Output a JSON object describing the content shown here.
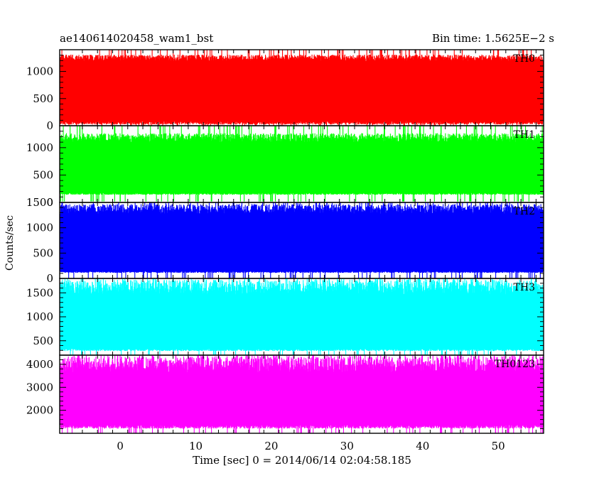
{
  "header": {
    "left": "ae140614020458_wam1_bst",
    "right": "Bin time: 1.5625E−2 s"
  },
  "chart_data": {
    "type": "line",
    "xlabel": "Time [sec] 0 = 2014/06/14 02:04:58.185",
    "ylabel": "Counts/sec",
    "xlim": [
      -8.0,
      56.0
    ],
    "xticks": [
      0,
      10,
      20,
      30,
      40,
      50
    ],
    "panels": [
      {
        "label": "TH0",
        "color": "#ff0000",
        "ylim": [
          0,
          1400
        ],
        "yticks": [
          0,
          500,
          1000
        ],
        "typical": [
          0,
          1300
        ],
        "low_base": 40,
        "high_base": 1250
      },
      {
        "label": "TH1",
        "color": "#00ff00",
        "ylim": [
          0,
          1400
        ],
        "yticks": [
          0,
          500,
          1000
        ],
        "typical": [
          130,
          1250
        ],
        "low_base": 150,
        "high_base": 1180
      },
      {
        "label": "TH2",
        "color": "#0000ff",
        "ylim": [
          0,
          1500
        ],
        "yticks": [
          0,
          500,
          1000,
          1500
        ],
        "typical": [
          100,
          1450
        ],
        "low_base": 120,
        "high_base": 1370
      },
      {
        "label": "TH3",
        "color": "#00ffff",
        "ylim": [
          200,
          1800
        ],
        "yticks": [
          500,
          1000,
          1500
        ],
        "typical": [
          270,
          1750
        ],
        "low_base": 300,
        "high_base": 1620
      },
      {
        "label": "TH0123",
        "color": "#ff00ff",
        "ylim": [
          1000,
          4400
        ],
        "yticks": [
          2000,
          3000,
          4000
        ],
        "typical": [
          1150,
          4300
        ],
        "low_base": 1250,
        "high_base": 4000
      }
    ]
  }
}
